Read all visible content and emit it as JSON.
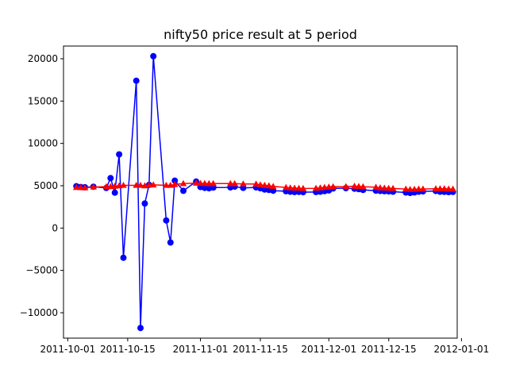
{
  "chart_data": {
    "type": "line",
    "title": "nifty50 price result at 5 period",
    "xlabel": "",
    "ylabel": "",
    "xlim": [
      "2011-09-30",
      "2011-12-31"
    ],
    "ylim": [
      -13000,
      21500
    ],
    "x_ticks": [
      "2011-10-01",
      "2011-10-15",
      "2011-11-01",
      "2011-11-15",
      "2011-12-01",
      "2011-12-15",
      "2012-01-01"
    ],
    "y_ticks": [
      -10000,
      -5000,
      0,
      5000,
      10000,
      15000,
      20000
    ],
    "grid": false,
    "legend": "none",
    "series": [
      {
        "color": "#0000ff",
        "marker": "circle",
        "points": [
          [
            "2011-10-03",
            4940
          ],
          [
            "2011-10-04",
            4850
          ],
          [
            "2011-10-05",
            4820
          ],
          [
            "2011-10-07",
            4890
          ],
          [
            "2011-10-10",
            4740
          ],
          [
            "2011-10-11",
            5900
          ],
          [
            "2011-10-12",
            4180
          ],
          [
            "2011-10-13",
            8700
          ],
          [
            "2011-10-14",
            -3500
          ],
          [
            "2011-10-17",
            17400
          ],
          [
            "2011-10-18",
            -11800
          ],
          [
            "2011-10-19",
            2900
          ],
          [
            "2011-10-20",
            5100
          ],
          [
            "2011-10-21",
            20300
          ],
          [
            "2011-10-24",
            900
          ],
          [
            "2011-10-25",
            -1700
          ],
          [
            "2011-10-26",
            5600
          ],
          [
            "2011-10-28",
            4400
          ],
          [
            "2011-10-31",
            5500
          ],
          [
            "2011-11-01",
            4850
          ],
          [
            "2011-11-02",
            4750
          ],
          [
            "2011-11-03",
            4700
          ],
          [
            "2011-11-04",
            4780
          ],
          [
            "2011-11-08",
            4800
          ],
          [
            "2011-11-09",
            4900
          ],
          [
            "2011-11-11",
            4750
          ],
          [
            "2011-11-14",
            4800
          ],
          [
            "2011-11-15",
            4700
          ],
          [
            "2011-11-16",
            4550
          ],
          [
            "2011-11-17",
            4500
          ],
          [
            "2011-11-18",
            4420
          ],
          [
            "2011-11-21",
            4350
          ],
          [
            "2011-11-22",
            4300
          ],
          [
            "2011-11-23",
            4260
          ],
          [
            "2011-11-24",
            4280
          ],
          [
            "2011-11-25",
            4240
          ],
          [
            "2011-11-28",
            4260
          ],
          [
            "2011-11-29",
            4300
          ],
          [
            "2011-11-30",
            4360
          ],
          [
            "2011-12-01",
            4450
          ],
          [
            "2011-12-02",
            4680
          ],
          [
            "2011-12-05",
            4720
          ],
          [
            "2011-12-07",
            4650
          ],
          [
            "2011-12-08",
            4600
          ],
          [
            "2011-12-09",
            4500
          ],
          [
            "2011-12-12",
            4420
          ],
          [
            "2011-12-13",
            4380
          ],
          [
            "2011-12-14",
            4350
          ],
          [
            "2011-12-15",
            4330
          ],
          [
            "2011-12-16",
            4300
          ],
          [
            "2011-12-19",
            4200
          ],
          [
            "2011-12-20",
            4150
          ],
          [
            "2011-12-21",
            4210
          ],
          [
            "2011-12-22",
            4300
          ],
          [
            "2011-12-23",
            4330
          ],
          [
            "2011-12-26",
            4380
          ],
          [
            "2011-12-27",
            4300
          ],
          [
            "2011-12-28",
            4280
          ],
          [
            "2011-12-29",
            4250
          ],
          [
            "2011-12-30",
            4270
          ]
        ]
      },
      {
        "color": "#ff0000",
        "marker": "triangle",
        "points": [
          [
            "2011-10-03",
            4800
          ],
          [
            "2011-10-04",
            4780
          ],
          [
            "2011-10-05",
            4760
          ],
          [
            "2011-10-07",
            4850
          ],
          [
            "2011-10-10",
            4880
          ],
          [
            "2011-10-11",
            4900
          ],
          [
            "2011-10-12",
            4950
          ],
          [
            "2011-10-13",
            5000
          ],
          [
            "2011-10-14",
            5050
          ],
          [
            "2011-10-17",
            5050
          ],
          [
            "2011-10-18",
            5050
          ],
          [
            "2011-10-19",
            5000
          ],
          [
            "2011-10-20",
            5080
          ],
          [
            "2011-10-21",
            5100
          ],
          [
            "2011-10-24",
            5050
          ],
          [
            "2011-10-25",
            5050
          ],
          [
            "2011-10-26",
            5150
          ],
          [
            "2011-10-28",
            5250
          ],
          [
            "2011-10-31",
            5300
          ],
          [
            "2011-11-01",
            5280
          ],
          [
            "2011-11-02",
            5270
          ],
          [
            "2011-11-03",
            5250
          ],
          [
            "2011-11-04",
            5250
          ],
          [
            "2011-11-08",
            5250
          ],
          [
            "2011-11-09",
            5240
          ],
          [
            "2011-11-11",
            5220
          ],
          [
            "2011-11-14",
            5200
          ],
          [
            "2011-11-15",
            5100
          ],
          [
            "2011-11-16",
            5050
          ],
          [
            "2011-11-17",
            5000
          ],
          [
            "2011-11-18",
            4920
          ],
          [
            "2011-11-21",
            4800
          ],
          [
            "2011-11-22",
            4750
          ],
          [
            "2011-11-23",
            4720
          ],
          [
            "2011-11-24",
            4700
          ],
          [
            "2011-11-25",
            4680
          ],
          [
            "2011-11-28",
            4700
          ],
          [
            "2011-11-29",
            4750
          ],
          [
            "2011-11-30",
            4800
          ],
          [
            "2011-12-01",
            4850
          ],
          [
            "2011-12-02",
            4880
          ],
          [
            "2011-12-05",
            4900
          ],
          [
            "2011-12-07",
            4950
          ],
          [
            "2011-12-08",
            4920
          ],
          [
            "2011-12-09",
            4880
          ],
          [
            "2011-12-12",
            4820
          ],
          [
            "2011-12-13",
            4760
          ],
          [
            "2011-12-14",
            4720
          ],
          [
            "2011-12-15",
            4700
          ],
          [
            "2011-12-16",
            4680
          ],
          [
            "2011-12-19",
            4600
          ],
          [
            "2011-12-20",
            4560
          ],
          [
            "2011-12-21",
            4580
          ],
          [
            "2011-12-22",
            4600
          ],
          [
            "2011-12-23",
            4620
          ],
          [
            "2011-12-26",
            4640
          ],
          [
            "2011-12-27",
            4650
          ],
          [
            "2011-12-28",
            4640
          ],
          [
            "2011-12-29",
            4620
          ],
          [
            "2011-12-30",
            4600
          ]
        ]
      }
    ]
  }
}
